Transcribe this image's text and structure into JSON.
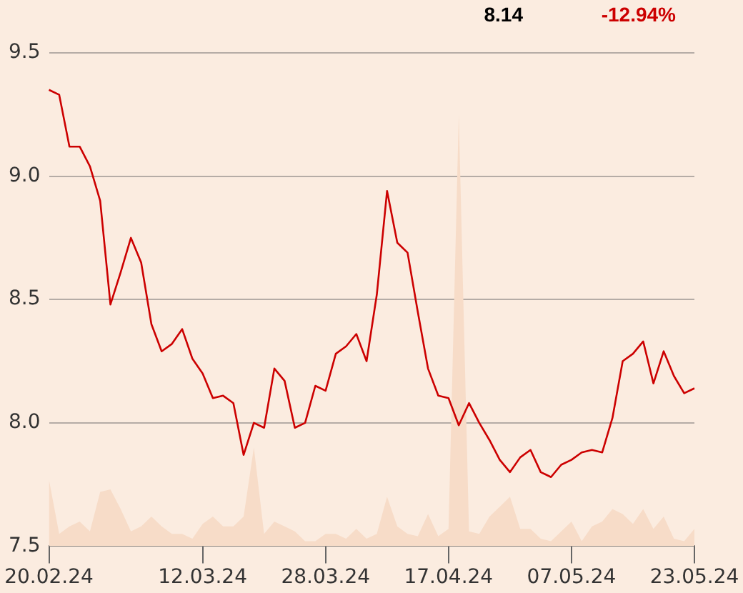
{
  "chart_data": {
    "type": "line",
    "categories": [
      "20.02.24",
      null,
      null,
      null,
      null,
      null,
      null,
      null,
      null,
      null,
      null,
      null,
      null,
      null,
      null,
      "12.03.24",
      null,
      null,
      null,
      null,
      null,
      null,
      null,
      null,
      null,
      null,
      null,
      "28.03.24",
      null,
      null,
      null,
      null,
      null,
      null,
      null,
      null,
      null,
      null,
      null,
      "17.04.24",
      null,
      null,
      null,
      null,
      null,
      null,
      null,
      null,
      null,
      null,
      null,
      "07.05.24",
      null,
      null,
      null,
      null,
      null,
      null,
      null,
      null,
      null,
      null,
      null,
      "23.05.24"
    ],
    "series": [
      {
        "type": "area",
        "color": "#f7dcc8",
        "values": [
          7.77,
          7.55,
          7.58,
          7.6,
          7.56,
          7.72,
          7.73,
          7.65,
          7.56,
          7.58,
          7.62,
          7.58,
          7.55,
          7.55,
          7.53,
          7.59,
          7.62,
          7.58,
          7.58,
          7.62,
          7.9,
          7.55,
          7.6,
          7.58,
          7.56,
          7.52,
          7.52,
          7.55,
          7.55,
          7.53,
          7.57,
          7.53,
          7.55,
          7.7,
          7.58,
          7.55,
          7.54,
          7.63,
          7.54,
          7.57,
          9.25,
          7.56,
          7.55,
          7.62,
          7.66,
          7.7,
          7.57,
          7.57,
          7.53,
          7.52,
          7.56,
          7.6,
          7.52,
          7.58,
          7.6,
          7.65,
          7.63,
          7.59,
          7.65,
          7.57,
          7.62,
          7.53,
          7.52,
          7.57
        ]
      },
      {
        "type": "line",
        "color": "#cc0000",
        "values": [
          9.35,
          9.33,
          9.12,
          9.12,
          9.04,
          8.9,
          8.48,
          8.61,
          8.75,
          8.65,
          8.4,
          8.29,
          8.32,
          8.38,
          8.26,
          8.2,
          8.1,
          8.11,
          8.08,
          7.87,
          8.0,
          7.98,
          8.22,
          8.17,
          7.98,
          8.0,
          8.15,
          8.13,
          8.28,
          8.31,
          8.36,
          8.25,
          8.52,
          8.94,
          8.73,
          8.69,
          8.45,
          8.22,
          8.11,
          8.1,
          7.99,
          8.08,
          8.0,
          7.93,
          7.85,
          7.8,
          7.86,
          7.89,
          7.8,
          7.78,
          7.83,
          7.85,
          7.88,
          7.89,
          7.88,
          8.02,
          8.25,
          8.28,
          8.33,
          8.16,
          8.29,
          8.19,
          8.12,
          8.14
        ]
      }
    ],
    "ylim": [
      7.5,
      9.5
    ],
    "yticks": [
      {
        "value": 7.5,
        "label": "7.5"
      },
      {
        "value": 8,
        "label": "8.0"
      },
      {
        "value": 8.5,
        "label": "8.5"
      },
      {
        "value": 9,
        "label": "9.0"
      },
      {
        "value": 9.5,
        "label": "9.5"
      }
    ],
    "grid": "y",
    "legend": false,
    "marker": "none",
    "line_style": "solid",
    "annotations": [
      "8.14",
      "-12.94%"
    ]
  }
}
